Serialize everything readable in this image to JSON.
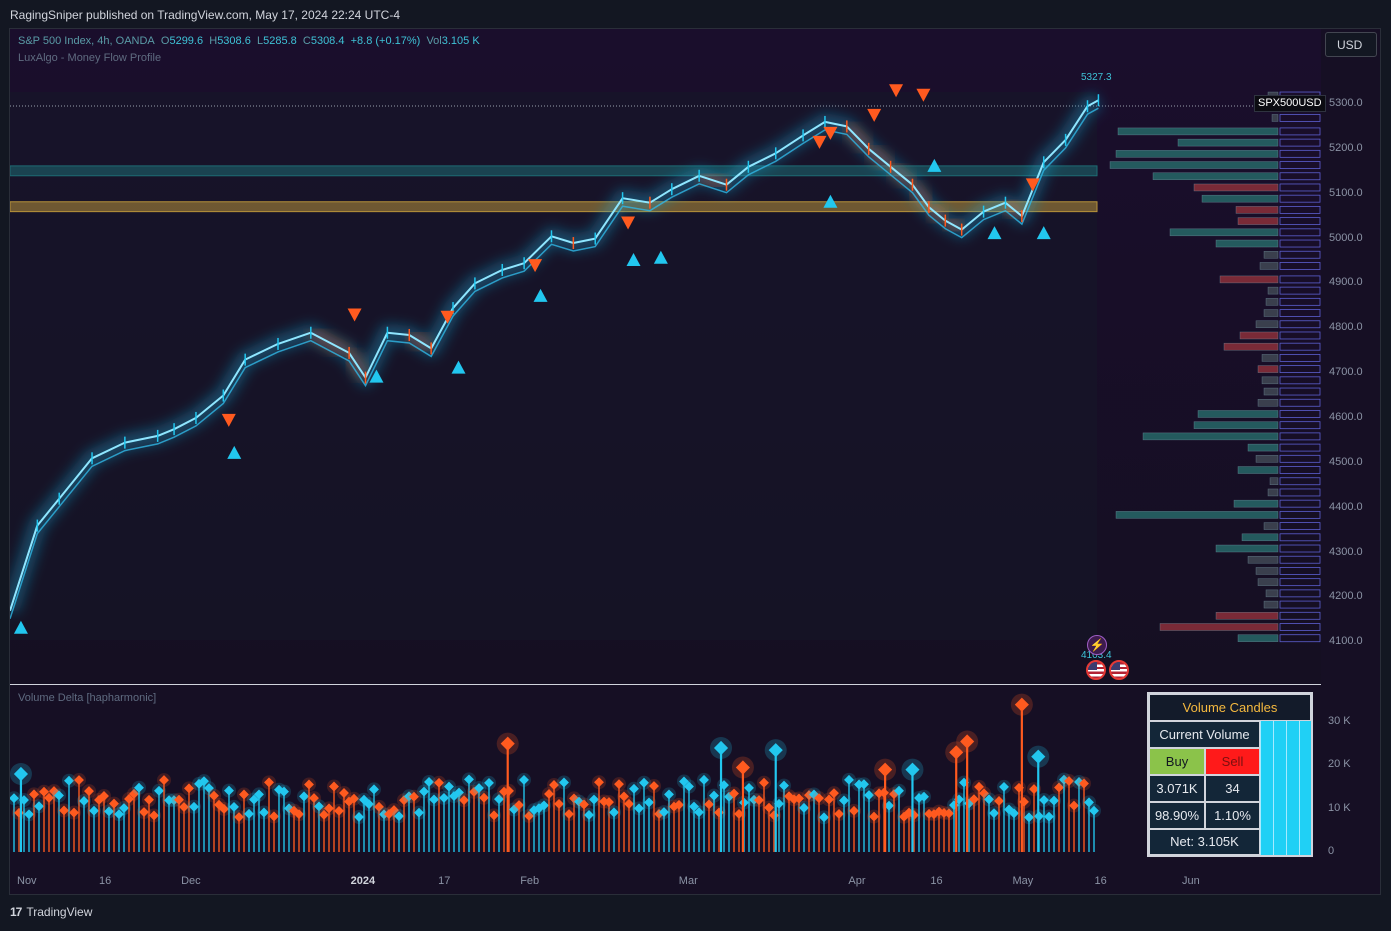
{
  "header": {
    "publisher_line": "RagingSniper published on TradingView.com, May 17, 2024 22:24 UTC-4"
  },
  "legend": {
    "symbol": "S&P 500 Index, 4h, OANDA",
    "o_label": "O",
    "o_value": "5299.6",
    "h_label": "H",
    "h_value": "5308.6",
    "l_label": "L",
    "l_value": "5285.8",
    "c_label": "C",
    "c_value": "5308.4",
    "change": "+8.8 (+0.17%)",
    "vol_label": "Vol",
    "vol_value": "3.105 K",
    "indicator1": "LuxAlgo - Money Flow Profile"
  },
  "currency_button": "USD",
  "symbol_tag": "SPX500USD",
  "high_label": "5327.3",
  "low_label": "4103.4",
  "price_axis": {
    "ticks": [
      "5300.0",
      "5200.0",
      "5100.0",
      "5000.0",
      "4900.0",
      "4800.0",
      "4700.0",
      "4600.0",
      "4500.0",
      "4400.0",
      "4300.0",
      "4200.0",
      "4100.0"
    ]
  },
  "volume_pane": {
    "title": "Volume Delta [hapharmonic]",
    "axis_ticks": [
      "30 K",
      "20 K",
      "10 K",
      "0"
    ]
  },
  "time_axis": {
    "labels": [
      "Nov",
      "16",
      "Dec",
      "2024",
      "17",
      "Feb",
      "Mar",
      "Apr",
      "16",
      "May",
      "16",
      "Jun"
    ]
  },
  "volume_table": {
    "title": "Volume Candles",
    "current_volume_label": "Current Volume",
    "buy_label": "Buy",
    "sell_label": "Sell",
    "buy_value": "3.071K",
    "sell_value": "34",
    "buy_pct": "98.90%",
    "sell_pct": "1.10%",
    "net": "Net: 3.105K"
  },
  "footer": {
    "brand": "TradingView",
    "logo_glyph": "17"
  },
  "colors": {
    "bull": "#22c7ef",
    "bear": "#ff5a1f",
    "background": "#160f24",
    "band_cyan": "#1e6b73",
    "band_gold": "#b8923a"
  },
  "chart_data": {
    "type": "line",
    "symbol": "S&P 500 Index, 4h, OANDA",
    "x": [
      "2023-11-01",
      "2023-11-06",
      "2023-11-10",
      "2023-11-16",
      "2023-11-22",
      "2023-11-28",
      "2023-12-01",
      "2023-12-05",
      "2023-12-10",
      "2023-12-14",
      "2023-12-20",
      "2023-12-26",
      "2024-01-02",
      "2024-01-05",
      "2024-01-09",
      "2024-01-13",
      "2024-01-17",
      "2024-01-21",
      "2024-01-25",
      "2024-01-30",
      "2024-02-03",
      "2024-02-08",
      "2024-02-12",
      "2024-02-16",
      "2024-02-21",
      "2024-02-26",
      "2024-03-01",
      "2024-03-06",
      "2024-03-11",
      "2024-03-15",
      "2024-03-20",
      "2024-03-25",
      "2024-03-29",
      "2024-04-02",
      "2024-04-06",
      "2024-04-10",
      "2024-04-14",
      "2024-04-17",
      "2024-04-20",
      "2024-04-23",
      "2024-04-27",
      "2024-05-01",
      "2024-05-04",
      "2024-05-08",
      "2024-05-12",
      "2024-05-16",
      "2024-05-18"
    ],
    "values": [
      4170,
      4360,
      4420,
      4510,
      4545,
      4560,
      4575,
      4600,
      4650,
      4730,
      4765,
      4790,
      4745,
      4690,
      4790,
      4785,
      4755,
      4845,
      4900,
      4930,
      4945,
      5005,
      4990,
      5000,
      5090,
      5080,
      5110,
      5140,
      5120,
      5160,
      5190,
      5230,
      5260,
      5250,
      5200,
      5160,
      5120,
      5070,
      5040,
      5020,
      5060,
      5080,
      5050,
      5170,
      5220,
      5295,
      5308.4
    ],
    "ylim": [
      4080,
      5340
    ],
    "price_scale": "linear",
    "high_marker": 5327.3,
    "low_marker": 4103.4,
    "signals": [
      {
        "date": "2023-11-03",
        "price": 4150,
        "type": "buy"
      },
      {
        "date": "2023-12-11",
        "price": 4560,
        "type": "sell"
      },
      {
        "date": "2023-12-12",
        "price": 4540,
        "type": "buy"
      },
      {
        "date": "2024-01-03",
        "price": 4795,
        "type": "sell"
      },
      {
        "date": "2024-01-07",
        "price": 4710,
        "type": "buy"
      },
      {
        "date": "2024-01-20",
        "price": 4790,
        "type": "sell"
      },
      {
        "date": "2024-01-22",
        "price": 4730,
        "type": "buy"
      },
      {
        "date": "2024-02-05",
        "price": 4905,
        "type": "sell"
      },
      {
        "date": "2024-02-06",
        "price": 4890,
        "type": "buy"
      },
      {
        "date": "2024-02-22",
        "price": 5000,
        "type": "sell"
      },
      {
        "date": "2024-02-23",
        "price": 4970,
        "type": "buy"
      },
      {
        "date": "2024-02-28",
        "price": 4975,
        "type": "buy"
      },
      {
        "date": "2024-03-28",
        "price": 5180,
        "type": "sell"
      },
      {
        "date": "2024-03-30",
        "price": 5200,
        "type": "sell"
      },
      {
        "date": "2024-03-30",
        "price": 5100,
        "type": "buy"
      },
      {
        "date": "2024-04-07",
        "price": 5240,
        "type": "sell"
      },
      {
        "date": "2024-04-11",
        "price": 5295,
        "type": "sell"
      },
      {
        "date": "2024-04-16",
        "price": 5285,
        "type": "sell"
      },
      {
        "date": "2024-04-18",
        "price": 5180,
        "type": "buy"
      },
      {
        "date": "2024-04-29",
        "price": 5030,
        "type": "buy"
      },
      {
        "date": "2024-05-06",
        "price": 5085,
        "type": "sell"
      },
      {
        "date": "2024-05-08",
        "price": 5030,
        "type": "buy"
      }
    ],
    "zones": [
      {
        "from": 5140,
        "to": 5162,
        "color": "cyan"
      },
      {
        "from": 5060,
        "to": 5082,
        "color": "gold"
      }
    ],
    "profile_rows": [
      {
        "price": 5320,
        "len": 10,
        "type": "neutral"
      },
      {
        "price": 5295,
        "len": 16,
        "type": "neutral"
      },
      {
        "price": 5270,
        "len": 6,
        "type": "neutral"
      },
      {
        "price": 5240,
        "len": 160,
        "type": "bull"
      },
      {
        "price": 5215,
        "len": 100,
        "type": "bull"
      },
      {
        "price": 5190,
        "len": 162,
        "type": "bull"
      },
      {
        "price": 5165,
        "len": 168,
        "type": "bull"
      },
      {
        "price": 5140,
        "len": 125,
        "type": "bull"
      },
      {
        "price": 5115,
        "len": 84,
        "type": "bear"
      },
      {
        "price": 5090,
        "len": 76,
        "type": "bull"
      },
      {
        "price": 5065,
        "len": 42,
        "type": "bear"
      },
      {
        "price": 5040,
        "len": 40,
        "type": "bear"
      },
      {
        "price": 5015,
        "len": 108,
        "type": "bull"
      },
      {
        "price": 4990,
        "len": 62,
        "type": "bull"
      },
      {
        "price": 4965,
        "len": 14,
        "type": "neutral"
      },
      {
        "price": 4940,
        "len": 18,
        "type": "neutral"
      },
      {
        "price": 4910,
        "len": 58,
        "type": "bear"
      },
      {
        "price": 4885,
        "len": 10,
        "type": "neutral"
      },
      {
        "price": 4860,
        "len": 12,
        "type": "neutral"
      },
      {
        "price": 4835,
        "len": 14,
        "type": "neutral"
      },
      {
        "price": 4810,
        "len": 22,
        "type": "neutral"
      },
      {
        "price": 4785,
        "len": 38,
        "type": "bear"
      },
      {
        "price": 4760,
        "len": 54,
        "type": "bear"
      },
      {
        "price": 4735,
        "len": 16,
        "type": "neutral"
      },
      {
        "price": 4710,
        "len": 20,
        "type": "bear"
      },
      {
        "price": 4685,
        "len": 16,
        "type": "neutral"
      },
      {
        "price": 4660,
        "len": 14,
        "type": "neutral"
      },
      {
        "price": 4635,
        "len": 20,
        "type": "neutral"
      },
      {
        "price": 4610,
        "len": 80,
        "type": "bull"
      },
      {
        "price": 4585,
        "len": 84,
        "type": "bull"
      },
      {
        "price": 4560,
        "len": 135,
        "type": "bull"
      },
      {
        "price": 4535,
        "len": 30,
        "type": "bull"
      },
      {
        "price": 4510,
        "len": 22,
        "type": "neutral"
      },
      {
        "price": 4485,
        "len": 40,
        "type": "bull"
      },
      {
        "price": 4460,
        "len": 8,
        "type": "neutral"
      },
      {
        "price": 4435,
        "len": 10,
        "type": "neutral"
      },
      {
        "price": 4410,
        "len": 44,
        "type": "bull"
      },
      {
        "price": 4385,
        "len": 162,
        "type": "bull"
      },
      {
        "price": 4360,
        "len": 14,
        "type": "neutral"
      },
      {
        "price": 4335,
        "len": 36,
        "type": "bull"
      },
      {
        "price": 4310,
        "len": 62,
        "type": "bull"
      },
      {
        "price": 4285,
        "len": 30,
        "type": "neutral"
      },
      {
        "price": 4260,
        "len": 22,
        "type": "neutral"
      },
      {
        "price": 4235,
        "len": 20,
        "type": "neutral"
      },
      {
        "price": 4210,
        "len": 12,
        "type": "neutral"
      },
      {
        "price": 4185,
        "len": 14,
        "type": "neutral"
      },
      {
        "price": 4160,
        "len": 62,
        "type": "bear"
      },
      {
        "price": 4135,
        "len": 118,
        "type": "bear"
      },
      {
        "price": 4110,
        "len": 40,
        "type": "bull"
      }
    ],
    "volume_ylim": [
      0,
      34000
    ],
    "volume_spikes": [
      {
        "date": "2024-01-31",
        "value": 25000,
        "type": "sell"
      },
      {
        "date": "2024-03-10",
        "value": 24000,
        "type": "buy"
      },
      {
        "date": "2024-03-14",
        "value": 19500,
        "type": "sell"
      },
      {
        "date": "2024-03-20",
        "value": 23500,
        "type": "buy"
      },
      {
        "date": "2024-04-22",
        "value": 23000,
        "type": "sell"
      },
      {
        "date": "2024-04-24",
        "value": 25500,
        "type": "sell"
      },
      {
        "date": "2024-05-04",
        "value": 34000,
        "type": "sell"
      },
      {
        "date": "2024-05-07",
        "value": 22000,
        "type": "buy"
      },
      {
        "date": "2023-11-03",
        "value": 18000,
        "type": "buy"
      },
      {
        "date": "2024-04-09",
        "value": 19000,
        "type": "sell"
      },
      {
        "date": "2024-04-14",
        "value": 19000,
        "type": "buy"
      }
    ]
  }
}
